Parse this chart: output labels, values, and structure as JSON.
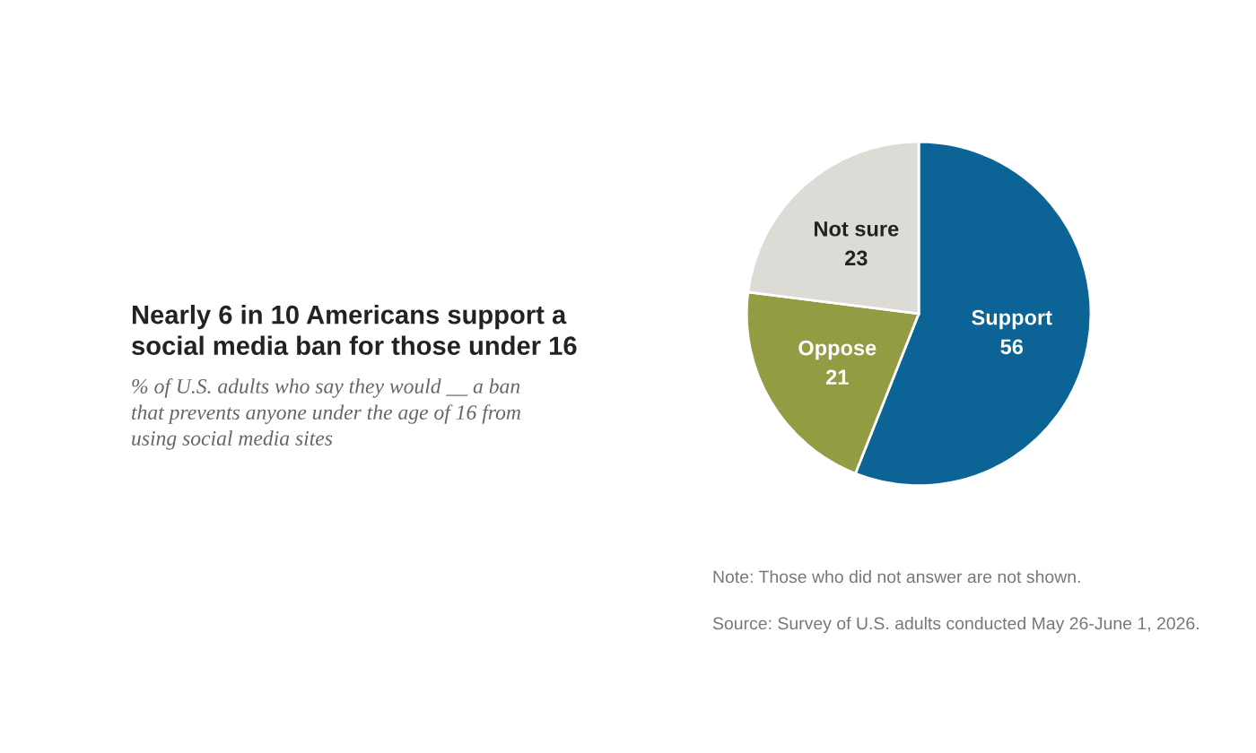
{
  "chart_data": {
    "type": "pie",
    "title": "Nearly 6 in 10 Americans support a\nsocial media ban for those under 16",
    "subtitle": "% of U.S. adults who say they would __ a ban\nthat prevents anyone under the age of 16 from\nusing social media sites",
    "categories": [
      "Support",
      "Oppose",
      "Not sure"
    ],
    "values": [
      56,
      21,
      23
    ],
    "colors": [
      "#0b6396",
      "#949c43",
      "#dcdbd6"
    ],
    "data_labels": true,
    "legend": false,
    "annotations": [
      "Note: Those who did not answer are not shown.",
      "Source: Survey of U.S. adults conducted May 26-June 1, 2026."
    ]
  }
}
